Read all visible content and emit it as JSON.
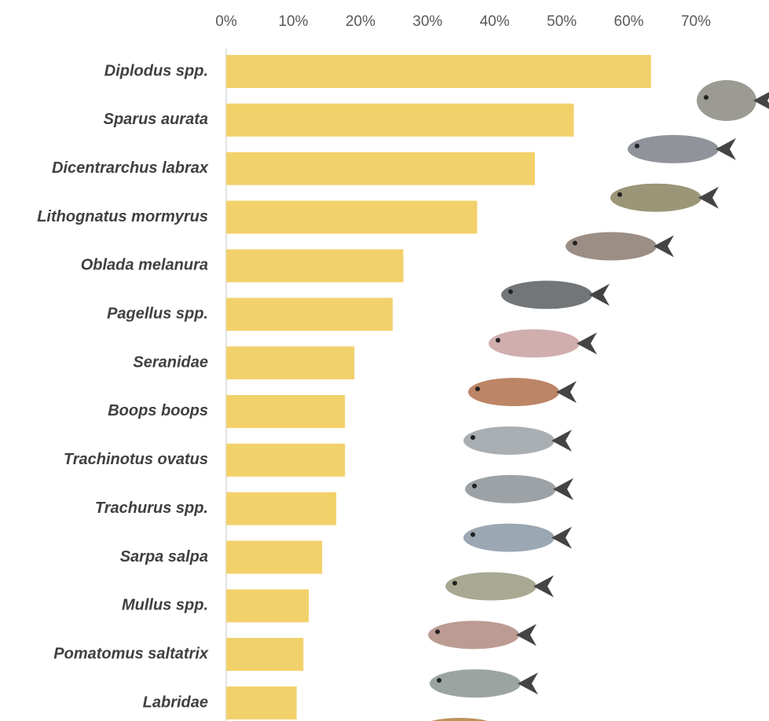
{
  "chart_data": {
    "type": "bar",
    "orientation": "horizontal",
    "categories": [
      "Diplodus spp.",
      "Sparus aurata",
      "Dicentrarchus labrax",
      "Lithognatus mormyrus",
      "Oblada melanura",
      "Pagellus spp.",
      "Seranidae",
      "Boops boops",
      "Trachinotus ovatus",
      "Trachurus spp.",
      "Sarpa salpa",
      "Mullus spp.",
      "Pomatomus saltatrix",
      "Labridae"
    ],
    "values": [
      63.3,
      51.8,
      46.0,
      37.4,
      26.4,
      24.8,
      19.1,
      17.7,
      17.7,
      16.4,
      14.3,
      12.3,
      11.5,
      10.5
    ],
    "color": "#f2d16b",
    "xlim": [
      0,
      70
    ],
    "xticks": [
      {
        "value": 0,
        "label": "0%"
      },
      {
        "value": 10,
        "label": "10%"
      },
      {
        "value": 20,
        "label": "20%"
      },
      {
        "value": 30,
        "label": "30%"
      },
      {
        "value": 40,
        "label": "40%"
      },
      {
        "value": 50,
        "label": "50%"
      },
      {
        "value": 60,
        "label": "60%"
      },
      {
        "value": 70,
        "label": "70%"
      }
    ],
    "grid": false
  }
}
